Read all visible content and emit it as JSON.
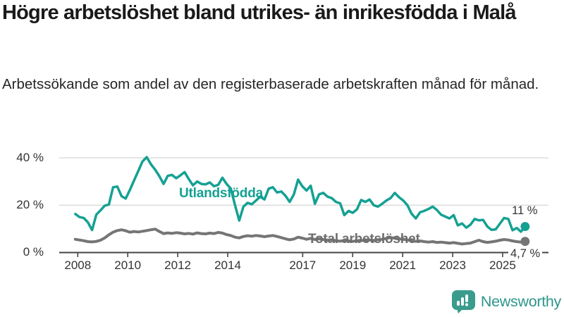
{
  "header": {
    "title": "Högre arbetslöshet bland utrikes- än inrikesfödda i Malå",
    "subtitle": "Arbetssökande som andel av den registerbaserade arbetskraften månad för månad."
  },
  "chart_data": {
    "type": "line",
    "title": "Högre arbetslöshet bland utrikes- än inrikesfödda i Malå",
    "xlabel": "",
    "ylabel": "Arbetssökande som andel av den registerbaserade arbetskraften (%)",
    "x_unit": "decimal_year",
    "x_min": 2007.9,
    "x_max": 2025.9,
    "ylim": [
      0,
      42
    ],
    "grid": "horizontal",
    "x_ticks": [
      2008,
      2010,
      2012,
      2014,
      2017,
      2019,
      2021,
      2023,
      2025
    ],
    "x_tick_labels": [
      "2008",
      "2010",
      "2012",
      "2014",
      "2017",
      "2019",
      "2021",
      "2023",
      "2025"
    ],
    "y_ticks": [
      0,
      20,
      40
    ],
    "y_tick_labels": [
      "0 %",
      "20 %",
      "40 %"
    ],
    "series": [
      {
        "name": "Utlandsfödda",
        "color": "#14a193",
        "end_label": "11 %",
        "end_value": 11.0,
        "values": [
          16.3,
          15.0,
          14.6,
          12.8,
          9.5,
          16.0,
          17.8,
          19.8,
          20.3,
          27.6,
          27.9,
          23.8,
          22.8,
          26.5,
          30.5,
          34.5,
          38.5,
          40.3,
          37.3,
          35.0,
          32.3,
          29.0,
          32.4,
          32.8,
          31.4,
          32.6,
          34.0,
          31.0,
          28.4,
          30.0,
          29.0,
          28.8,
          29.6,
          28.0,
          28.6,
          31.6,
          29.0,
          27.0,
          20.0,
          13.5,
          19.4,
          21.0,
          20.4,
          22.0,
          23.6,
          22.4,
          27.0,
          27.6,
          25.4,
          25.8,
          24.0,
          21.4,
          24.6,
          30.8,
          28.0,
          26.2,
          28.2,
          20.6,
          24.6,
          25.2,
          23.6,
          23.0,
          21.4,
          20.8,
          15.8,
          17.6,
          16.8,
          18.2,
          22.2,
          21.4,
          22.4,
          20.0,
          19.4,
          20.6,
          22.0,
          23.0,
          25.2,
          23.4,
          22.0,
          20.0,
          16.4,
          14.4,
          17.0,
          17.6,
          18.4,
          19.4,
          18.0,
          16.0,
          15.2,
          14.4,
          15.8,
          11.5,
          12.3,
          10.5,
          11.8,
          14.2,
          13.6,
          13.8,
          11.0,
          9.6,
          9.8,
          12.2,
          14.6,
          14.2,
          9.4,
          10.4,
          8.8,
          11.0
        ]
      },
      {
        "name": "Total arbetslöshet",
        "color": "#757575",
        "end_label": "4,7 %",
        "end_value": 4.7,
        "values": [
          5.6,
          5.3,
          5.0,
          4.6,
          4.5,
          4.7,
          5.2,
          6.2,
          7.5,
          8.6,
          9.3,
          9.6,
          9.2,
          8.6,
          8.9,
          8.7,
          9.0,
          9.3,
          9.6,
          9.9,
          8.9,
          8.0,
          8.3,
          8.1,
          8.4,
          8.2,
          7.9,
          8.1,
          7.8,
          8.3,
          8.0,
          7.9,
          8.2,
          8.0,
          8.5,
          8.2,
          7.6,
          7.2,
          6.5,
          6.2,
          6.8,
          7.1,
          6.9,
          7.2,
          7.0,
          6.7,
          7.0,
          7.2,
          6.8,
          6.3,
          5.8,
          5.4,
          5.7,
          6.5,
          6.1,
          5.6,
          6.0,
          5.5,
          5.8,
          5.5,
          5.2,
          5.4,
          5.0,
          4.8,
          5.1,
          4.9,
          4.7,
          5.0,
          5.2,
          4.9,
          5.3,
          5.1,
          5.4,
          5.6,
          6.0,
          6.3,
          6.1,
          5.8,
          5.6,
          5.3,
          5.0,
          4.7,
          4.9,
          4.6,
          4.4,
          4.6,
          4.3,
          4.4,
          4.2,
          4.0,
          4.2,
          3.9,
          3.6,
          3.8,
          4.0,
          4.6,
          5.2,
          4.6,
          4.3,
          4.5,
          4.8,
          5.2,
          5.5,
          5.3,
          4.9,
          4.6,
          4.4,
          4.7
        ]
      }
    ],
    "colors": {
      "axis": "#454545",
      "gridline": "#d9d9d9",
      "tick_label": "#333333"
    }
  },
  "footer": {
    "brand": "Newsworthy",
    "brand_color": "#2e968b"
  }
}
